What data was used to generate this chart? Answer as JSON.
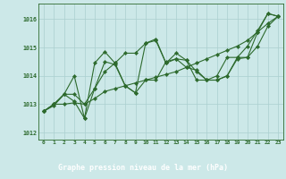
{
  "x": [
    0,
    1,
    2,
    3,
    4,
    5,
    6,
    7,
    8,
    9,
    10,
    11,
    12,
    13,
    14,
    15,
    16,
    17,
    18,
    19,
    20,
    21,
    22,
    23
  ],
  "line1": [
    1012.75,
    1013.0,
    1013.0,
    1013.05,
    1013.0,
    1013.2,
    1013.45,
    1013.55,
    1013.65,
    1013.75,
    1013.85,
    1013.95,
    1014.05,
    1014.15,
    1014.3,
    1014.45,
    1014.6,
    1014.75,
    1014.9,
    1015.05,
    1015.25,
    1015.55,
    1015.85,
    1016.1
  ],
  "line2": [
    1012.75,
    1013.0,
    1013.35,
    1013.35,
    1013.0,
    1013.55,
    1014.15,
    1014.45,
    1014.8,
    1014.8,
    1015.15,
    1015.25,
    1014.45,
    1014.6,
    1014.55,
    1013.85,
    1013.85,
    1013.85,
    1014.0,
    1014.6,
    1014.65,
    1015.55,
    1016.2,
    1016.1
  ],
  "line3": [
    1012.75,
    1013.0,
    1013.35,
    1014.0,
    1012.5,
    1014.45,
    1014.85,
    1014.45,
    1013.65,
    1013.4,
    1015.15,
    1015.3,
    1014.45,
    1014.8,
    1014.55,
    1014.15,
    1013.85,
    1013.85,
    1014.0,
    1014.65,
    1014.65,
    1015.05,
    1015.75,
    1016.1
  ],
  "line4": [
    1012.75,
    1012.95,
    1013.35,
    1013.1,
    1012.5,
    1013.55,
    1014.5,
    1014.4,
    1013.65,
    1013.4,
    1013.85,
    1013.85,
    1014.5,
    1014.6,
    1014.3,
    1014.2,
    1013.85,
    1014.0,
    1014.65,
    1014.65,
    1015.05,
    1015.6,
    1016.2,
    1016.1
  ],
  "line_color": "#2d6a2d",
  "bg_color": "#cce8e8",
  "footer_bg": "#2d6a2d",
  "grid_color": "#aacfcf",
  "xlabel": "Graphe pression niveau de la mer (hPa)",
  "ylim": [
    1011.75,
    1016.55
  ],
  "yticks": [
    1012,
    1013,
    1014,
    1015,
    1016
  ],
  "xticks": [
    0,
    1,
    2,
    3,
    4,
    5,
    6,
    7,
    8,
    9,
    10,
    11,
    12,
    13,
    14,
    15,
    16,
    17,
    18,
    19,
    20,
    21,
    22,
    23
  ]
}
